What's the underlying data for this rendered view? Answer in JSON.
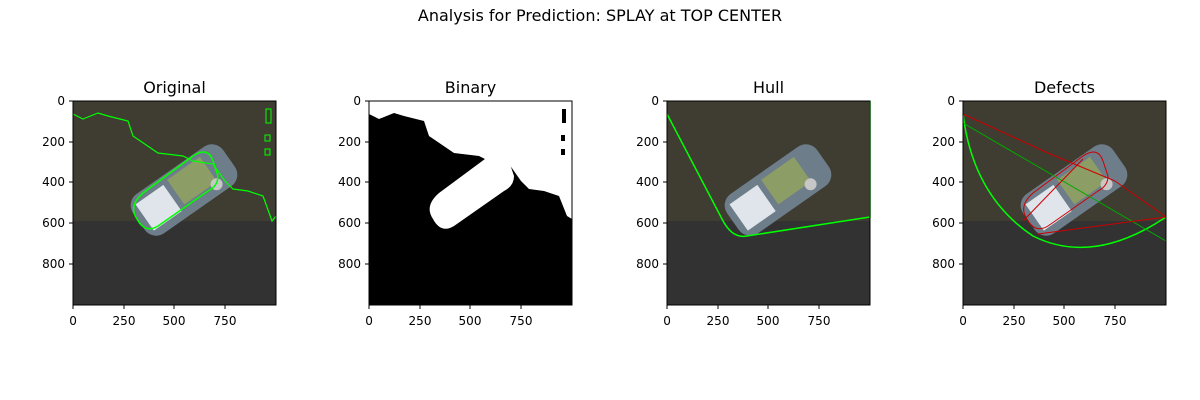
{
  "figure": {
    "title": "Analysis for Prediction: SPLAY at TOP CENTER"
  },
  "colors": {
    "contour": "#00ff00",
    "defect": "#cc0000",
    "background_dark": "#3d3a2e",
    "object": "#6e7d8a"
  },
  "panels": [
    {
      "title": "Original",
      "overlay": "contour"
    },
    {
      "title": "Binary",
      "overlay": "mask"
    },
    {
      "title": "Hull",
      "overlay": "convex-hull"
    },
    {
      "title": "Defects",
      "overlay": "convexity-defects"
    }
  ],
  "axes": {
    "x_ticks": [
      "0",
      "250",
      "500",
      "750"
    ],
    "y_ticks": [
      "0",
      "200",
      "400",
      "600",
      "800"
    ],
    "xlim": [
      0,
      1000
    ],
    "ylim": [
      1000,
      0
    ]
  }
}
